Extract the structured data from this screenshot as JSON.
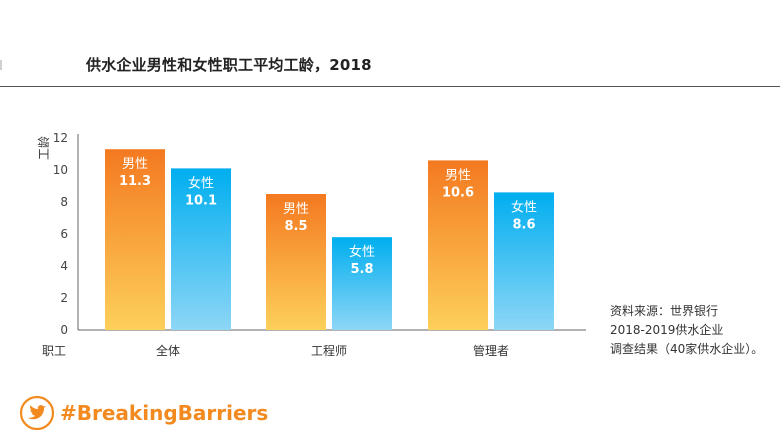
{
  "title": "供水企业男性和女性职工平均工龄，2018",
  "source_lines": [
    "资料来源：世界银行",
    "2018-2019供水企业",
    "调查结果（40家供水企业）。"
  ],
  "hashtag": "#BreakingBarriers",
  "icon": "twitter-bird-icon",
  "colors": {
    "male_top": "#f47920",
    "male_bottom": "#fdd05a",
    "female_top": "#00aeef",
    "female_bottom": "#8dd6f6",
    "axis": "#666666",
    "hashtag": "#f28a1f"
  },
  "chart_data": {
    "type": "bar",
    "title": "",
    "ylabel": "工龄",
    "xlabel": "职工",
    "ylim": [
      0,
      12
    ],
    "yticks": [
      0,
      2,
      4,
      6,
      8,
      10,
      12
    ],
    "categories": [
      "全体",
      "工程师",
      "管理者"
    ],
    "series": [
      {
        "name": "男性",
        "values": [
          11.3,
          8.5,
          10.6
        ],
        "labels": [
          "11.3",
          "8.5",
          "10.6"
        ]
      },
      {
        "name": "女性",
        "values": [
          10.1,
          5.8,
          8.6
        ],
        "labels": [
          "10.1",
          "5.8",
          "8.6"
        ]
      }
    ],
    "grid": false,
    "legend": "none"
  }
}
